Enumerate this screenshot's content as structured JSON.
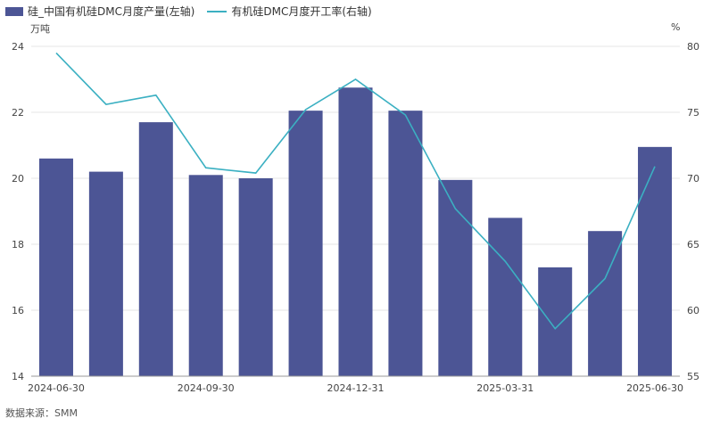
{
  "chart_data": {
    "type": "bar",
    "x_ticks": [
      "2024-06-30",
      "2024-09-30",
      "2024-12-31",
      "2025-03-31",
      "2025-06-30"
    ],
    "series": [
      {
        "name": "硅_中国有机硅DMC月度产量(左轴)",
        "kind": "bar",
        "axis": "left",
        "color": "#4c5595",
        "values": [
          20.6,
          20.2,
          21.7,
          20.1,
          20.0,
          22.05,
          22.75,
          22.05,
          19.95,
          18.8,
          17.3,
          18.4,
          20.95
        ]
      },
      {
        "name": "有机硅DMC月度开工率(右轴)",
        "kind": "line",
        "axis": "right",
        "color": "#3bb0c2",
        "values": [
          79.5,
          75.6,
          76.3,
          70.8,
          70.4,
          75.2,
          77.5,
          74.8,
          67.7,
          63.7,
          58.6,
          62.4,
          70.9
        ]
      }
    ],
    "left_axis": {
      "unit": "万吨",
      "min": 14,
      "max": 24,
      "ticks": [
        14,
        16,
        18,
        20,
        22,
        24
      ]
    },
    "right_axis": {
      "unit": "%",
      "min": 55,
      "max": 80,
      "ticks": [
        55,
        60,
        65,
        70,
        75,
        80
      ]
    },
    "legend_position": "top-left"
  },
  "source_text": "数据来源：SMM"
}
